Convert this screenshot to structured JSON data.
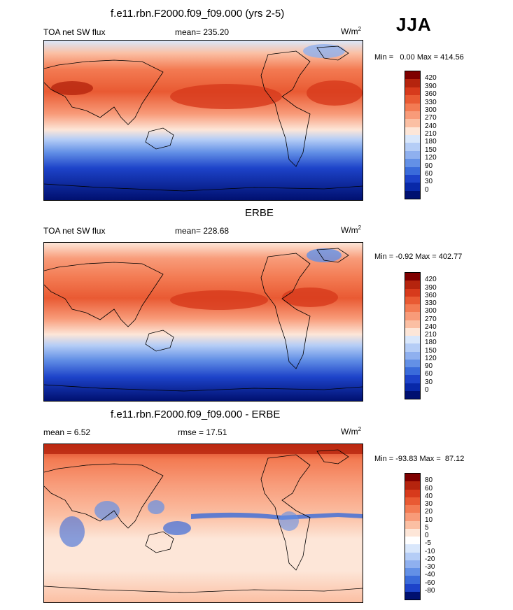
{
  "season": "JJA",
  "panels": [
    {
      "title": "f.e11.rbn.F2000.f09_f09.000 (yrs 2-5)",
      "left_label": "TOA net SW flux",
      "center_label": "mean= 235.20",
      "units_base": "W/m",
      "units_exp": "2",
      "minmax": "Min =   0.00 Max = 414.56",
      "levels": [
        "420",
        "390",
        "360",
        "330",
        "300",
        "270",
        "240",
        "210",
        "180",
        "150",
        "120",
        "90",
        "60",
        "30",
        "0"
      ],
      "colors": [
        "#7f0000",
        "#b5240e",
        "#d73a1c",
        "#e95a33",
        "#f37b53",
        "#f89b79",
        "#fbbfa3",
        "#fde6d8",
        "#d9e7fb",
        "#b5cdf6",
        "#8fb0ef",
        "#6390e6",
        "#3a6bda",
        "#1d43c9",
        "#0828a8",
        "#001070"
      ]
    },
    {
      "title": "ERBE",
      "left_label": "TOA net SW flux",
      "center_label": "mean= 228.68",
      "units_base": "W/m",
      "units_exp": "2",
      "minmax": "Min = -0.92 Max = 402.77",
      "levels": [
        "420",
        "390",
        "360",
        "330",
        "300",
        "270",
        "240",
        "210",
        "180",
        "150",
        "120",
        "90",
        "60",
        "30",
        "0"
      ],
      "colors": [
        "#7f0000",
        "#b5240e",
        "#d73a1c",
        "#e95a33",
        "#f37b53",
        "#f89b79",
        "#fbbfa3",
        "#fde6d8",
        "#d9e7fb",
        "#b5cdf6",
        "#8fb0ef",
        "#6390e6",
        "#3a6bda",
        "#1d43c9",
        "#0828a8",
        "#001070"
      ]
    },
    {
      "title": "f.e11.rbn.F2000.f09_f09.000 - ERBE",
      "left_label": "mean =   6.52",
      "center_label": "rmse =  17.51",
      "units_base": "W/m",
      "units_exp": "2",
      "minmax": "Min = -93.83 Max =  87.12",
      "levels": [
        "80",
        "60",
        "40",
        "30",
        "20",
        "10",
        "5",
        "0",
        "-5",
        "-10",
        "-20",
        "-30",
        "-40",
        "-60",
        "-80"
      ],
      "colors": [
        "#7f0000",
        "#b5240e",
        "#d73a1c",
        "#e95a33",
        "#f37b53",
        "#f89b79",
        "#fbbfa3",
        "#fde6d8",
        "#ffffff",
        "#d9e7fb",
        "#b5cdf6",
        "#8fb0ef",
        "#6390e6",
        "#3a6bda",
        "#1d43c9",
        "#001070"
      ]
    }
  ]
}
